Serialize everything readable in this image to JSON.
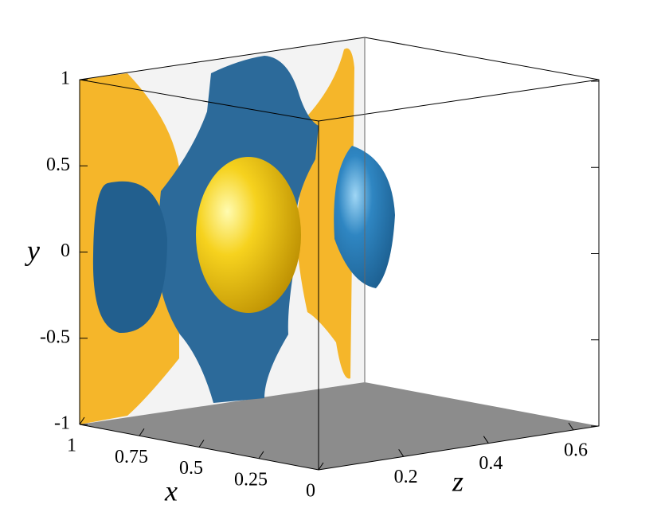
{
  "chart_data": {
    "type": "isosurface3d",
    "x_label": "x",
    "y_label": "y",
    "z_label": "z",
    "xlim": [
      1,
      0
    ],
    "ylim": [
      -1,
      1
    ],
    "zlim": [
      0,
      0.66
    ],
    "xticks": [
      1,
      0.75,
      0.5,
      0.25,
      0
    ],
    "yticks": [
      -1,
      -0.5,
      0,
      0.5,
      1
    ],
    "zticks": [
      0.2,
      0.4,
      0.6
    ]
  }
}
